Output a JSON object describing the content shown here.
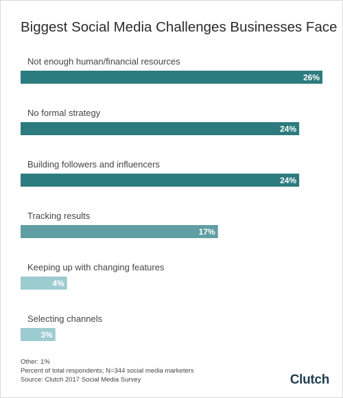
{
  "chart_data": {
    "type": "bar",
    "orientation": "horizontal",
    "title": "Biggest Social Media Challenges Businesses Face",
    "categories": [
      "Not enough human/financial resources",
      "No formal strategy",
      "Building followers and influencers",
      "Tracking results",
      "Keeping up with changing features",
      "Selecting channels"
    ],
    "values": [
      26,
      24,
      24,
      17,
      4,
      3
    ],
    "value_labels": [
      "26%",
      "24%",
      "24%",
      "17%",
      "4%",
      "3%"
    ],
    "colors": [
      "#2c7b7e",
      "#2c7b7e",
      "#2c7b7e",
      "#5f9ea2",
      "#9ccbd0",
      "#9ccbd0"
    ],
    "grid": false
  },
  "notes": {
    "other": "Other: 1%",
    "respondents": "Percent of total respondents; N=344 social media marketers",
    "source": "Source: Clutch 2017 Social Media Survey"
  },
  "brand": {
    "logo_text": "Clutch"
  }
}
